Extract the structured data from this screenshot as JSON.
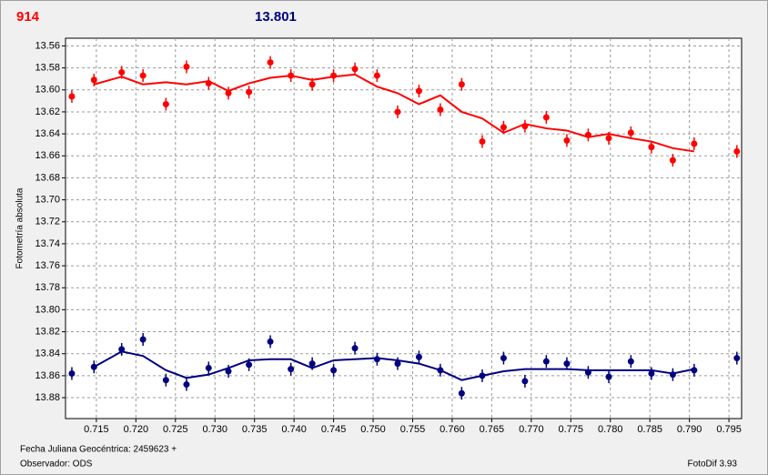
{
  "header": {
    "left": "914",
    "right": "13.801"
  },
  "chart_data": {
    "type": "scatter",
    "y_label": "Fotometría absoluta",
    "x_label": "Fecha Juliana Geocéntrica: 2459623 +",
    "xlim": [
      0.7111,
      0.7966
    ],
    "ylim": [
      13.899,
      13.553
    ],
    "xticks": [
      0.715,
      {
        "value": 0.72,
        "label": "0.720"
      },
      0.725,
      {
        "value": 0.73,
        "label": "0.730"
      },
      0.735,
      {
        "value": 0.74,
        "label": "0.740"
      },
      0.745,
      {
        "value": 0.75,
        "label": "0.750"
      },
      0.755,
      {
        "value": 0.76,
        "label": "0.760"
      },
      0.765,
      {
        "value": 0.77,
        "label": "0.770"
      },
      0.775,
      {
        "value": 0.78,
        "label": "0.780"
      },
      0.785,
      {
        "value": 0.79,
        "label": "0.790"
      },
      0.795
    ],
    "yticks": [
      13.56,
      13.58,
      {
        "value": 13.6,
        "label": "13.60"
      },
      13.62,
      13.64,
      13.66,
      13.68,
      {
        "value": 13.7,
        "label": "13.70"
      },
      13.72,
      13.74,
      13.76,
      13.78,
      {
        "value": 13.8,
        "label": "13.80"
      },
      13.82,
      13.84,
      13.86,
      13.88
    ],
    "grid": true,
    "series": [
      {
        "kind": "points",
        "color": "#ff0000",
        "x": [
          0.7119,
          0.7147,
          0.7182,
          0.7209,
          0.7238,
          0.7264,
          0.7292,
          0.7317,
          0.7343,
          0.737,
          0.7396,
          0.7423,
          0.745,
          0.7477,
          0.7505,
          0.7531,
          0.7558,
          0.7585,
          0.7612,
          0.7638,
          0.7665,
          0.7692,
          0.7719,
          0.7745,
          0.7772,
          0.7798,
          0.7826,
          0.7852,
          0.7879,
          0.7906,
          0.796
        ],
        "values": [
          13.606,
          13.591,
          13.584,
          13.587,
          13.613,
          13.579,
          13.594,
          13.603,
          13.602,
          13.575,
          13.587,
          13.595,
          13.587,
          13.581,
          13.587,
          13.62,
          13.601,
          13.618,
          13.595,
          13.647,
          13.634,
          13.633,
          13.625,
          13.646,
          13.641,
          13.644,
          13.639,
          13.652,
          13.664,
          13.649,
          13.656
        ]
      },
      {
        "kind": "line",
        "color": "#ff0000",
        "x": [
          0.7147,
          0.7182,
          0.7209,
          0.7238,
          0.7264,
          0.7292,
          0.7317,
          0.7343,
          0.737,
          0.7396,
          0.7423,
          0.745,
          0.7477,
          0.7505,
          0.7531,
          0.7558,
          0.7585,
          0.7612,
          0.7638,
          0.7665,
          0.7692,
          0.7719,
          0.7745,
          0.7772,
          0.7798,
          0.7826,
          0.7852,
          0.7879,
          0.7906
        ],
        "values": [
          13.595,
          13.588,
          13.595,
          13.593,
          13.595,
          13.592,
          13.601,
          13.594,
          13.589,
          13.587,
          13.591,
          13.588,
          13.586,
          13.597,
          13.603,
          13.613,
          13.605,
          13.62,
          13.626,
          13.639,
          13.631,
          13.635,
          13.637,
          13.643,
          13.64,
          13.644,
          13.647,
          13.653,
          13.656
        ]
      },
      {
        "kind": "points",
        "color": "#000080",
        "x": [
          0.7119,
          0.7147,
          0.7182,
          0.7209,
          0.7238,
          0.7264,
          0.7292,
          0.7317,
          0.7343,
          0.737,
          0.7396,
          0.7423,
          0.745,
          0.7477,
          0.7505,
          0.7531,
          0.7558,
          0.7585,
          0.7612,
          0.7638,
          0.7665,
          0.7692,
          0.7719,
          0.7745,
          0.7772,
          0.7798,
          0.7826,
          0.7852,
          0.7879,
          0.7906,
          0.796
        ],
        "values": [
          13.858,
          13.852,
          13.836,
          13.827,
          13.864,
          13.868,
          13.853,
          13.856,
          13.85,
          13.829,
          13.854,
          13.849,
          13.855,
          13.835,
          13.845,
          13.849,
          13.843,
          13.855,
          13.876,
          13.86,
          13.844,
          13.865,
          13.847,
          13.849,
          13.857,
          13.861,
          13.847,
          13.858,
          13.859,
          13.855,
          13.844
        ]
      },
      {
        "kind": "line",
        "color": "#000080",
        "x": [
          0.7147,
          0.7182,
          0.7209,
          0.7238,
          0.7264,
          0.7292,
          0.7317,
          0.7343,
          0.737,
          0.7396,
          0.7423,
          0.745,
          0.7477,
          0.7505,
          0.7531,
          0.7558,
          0.7585,
          0.7612,
          0.7638,
          0.7665,
          0.7692,
          0.7719,
          0.7745,
          0.7772,
          0.7798,
          0.7826,
          0.7852,
          0.7879,
          0.7906
        ],
        "values": [
          13.852,
          13.838,
          13.842,
          13.855,
          13.862,
          13.859,
          13.853,
          13.846,
          13.845,
          13.845,
          13.853,
          13.846,
          13.845,
          13.844,
          13.846,
          13.849,
          13.855,
          13.864,
          13.86,
          13.856,
          13.854,
          13.854,
          13.854,
          13.855,
          13.855,
          13.855,
          13.855,
          13.858,
          13.854
        ]
      }
    ]
  },
  "footer": {
    "observer": "Observador: ODS",
    "version": "FotoDif 3.93"
  }
}
